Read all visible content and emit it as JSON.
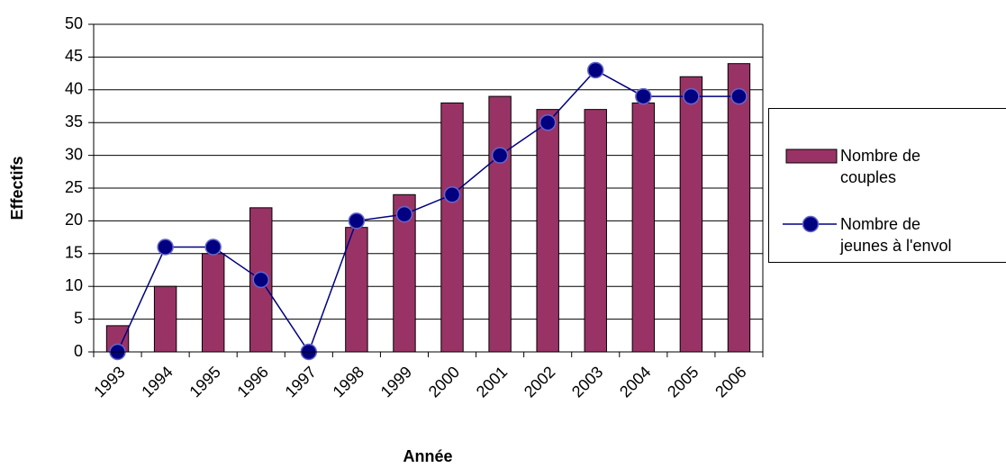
{
  "chart_data": {
    "type": "bar_line",
    "x_label": "Année",
    "y_label": "Effectifs",
    "categories": [
      "1993",
      "1994",
      "1995",
      "1996",
      "1997",
      "1998",
      "1999",
      "2000",
      "2001",
      "2002",
      "2003",
      "2004",
      "2005",
      "2006"
    ],
    "series": [
      {
        "name": "Nombre de couples",
        "type": "bar",
        "color": "#993366",
        "values": [
          4,
          10,
          15,
          22,
          0,
          19,
          24,
          38,
          39,
          37,
          37,
          38,
          42,
          44
        ]
      },
      {
        "name": "Nombre de jeunes à l'envol",
        "type": "line",
        "color": "#000080",
        "values": [
          0,
          16,
          16,
          11,
          0,
          20,
          21,
          24,
          30,
          35,
          43,
          39,
          39,
          39
        ]
      }
    ],
    "ylim": [
      0,
      50
    ],
    "yticks": [
      0,
      5,
      10,
      15,
      20,
      25,
      30,
      35,
      40,
      45,
      50
    ],
    "grid": true,
    "legend": "right"
  }
}
